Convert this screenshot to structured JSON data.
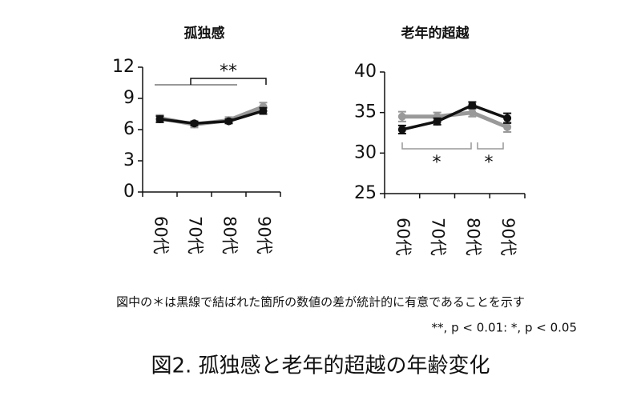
{
  "chart_data": [
    {
      "type": "line",
      "title": "孤独感",
      "categories": [
        "60代",
        "70代",
        "80代",
        "90代"
      ],
      "series": [
        {
          "color": "#999999",
          "values": [
            7.1,
            6.5,
            6.9,
            8.2
          ],
          "errors": [
            0.3,
            0.3,
            0.3,
            0.4
          ]
        },
        {
          "color": "#111111",
          "values": [
            7.0,
            6.6,
            6.8,
            7.8
          ],
          "errors": [
            0.3,
            0.2,
            0.2,
            0.3
          ]
        }
      ],
      "ylim": [
        0,
        12
      ],
      "yticks": [
        0,
        3,
        6,
        9,
        12
      ],
      "annotations": [
        "**"
      ]
    },
    {
      "type": "line",
      "title": "老年的超越",
      "categories": [
        "60代",
        "70代",
        "80代",
        "90代"
      ],
      "series": [
        {
          "color": "#999999",
          "values": [
            34.5,
            34.5,
            35.0,
            33.2
          ],
          "errors": [
            0.6,
            0.5,
            0.5,
            0.6
          ]
        },
        {
          "color": "#111111",
          "values": [
            32.9,
            33.9,
            35.9,
            34.3
          ],
          "errors": [
            0.5,
            0.4,
            0.4,
            0.6
          ]
        }
      ],
      "ylim": [
        25,
        40
      ],
      "yticks": [
        25,
        30,
        35,
        40
      ],
      "annotations": [
        "*",
        "*"
      ]
    }
  ],
  "note": "図中の＊は黒線で結ばれた箇所の数値の差が統計的に有意であることを示す",
  "significance": "**, p < 0.01: *, p < 0.05",
  "caption": "図2. 孤独感と老年的超越の年齢変化"
}
